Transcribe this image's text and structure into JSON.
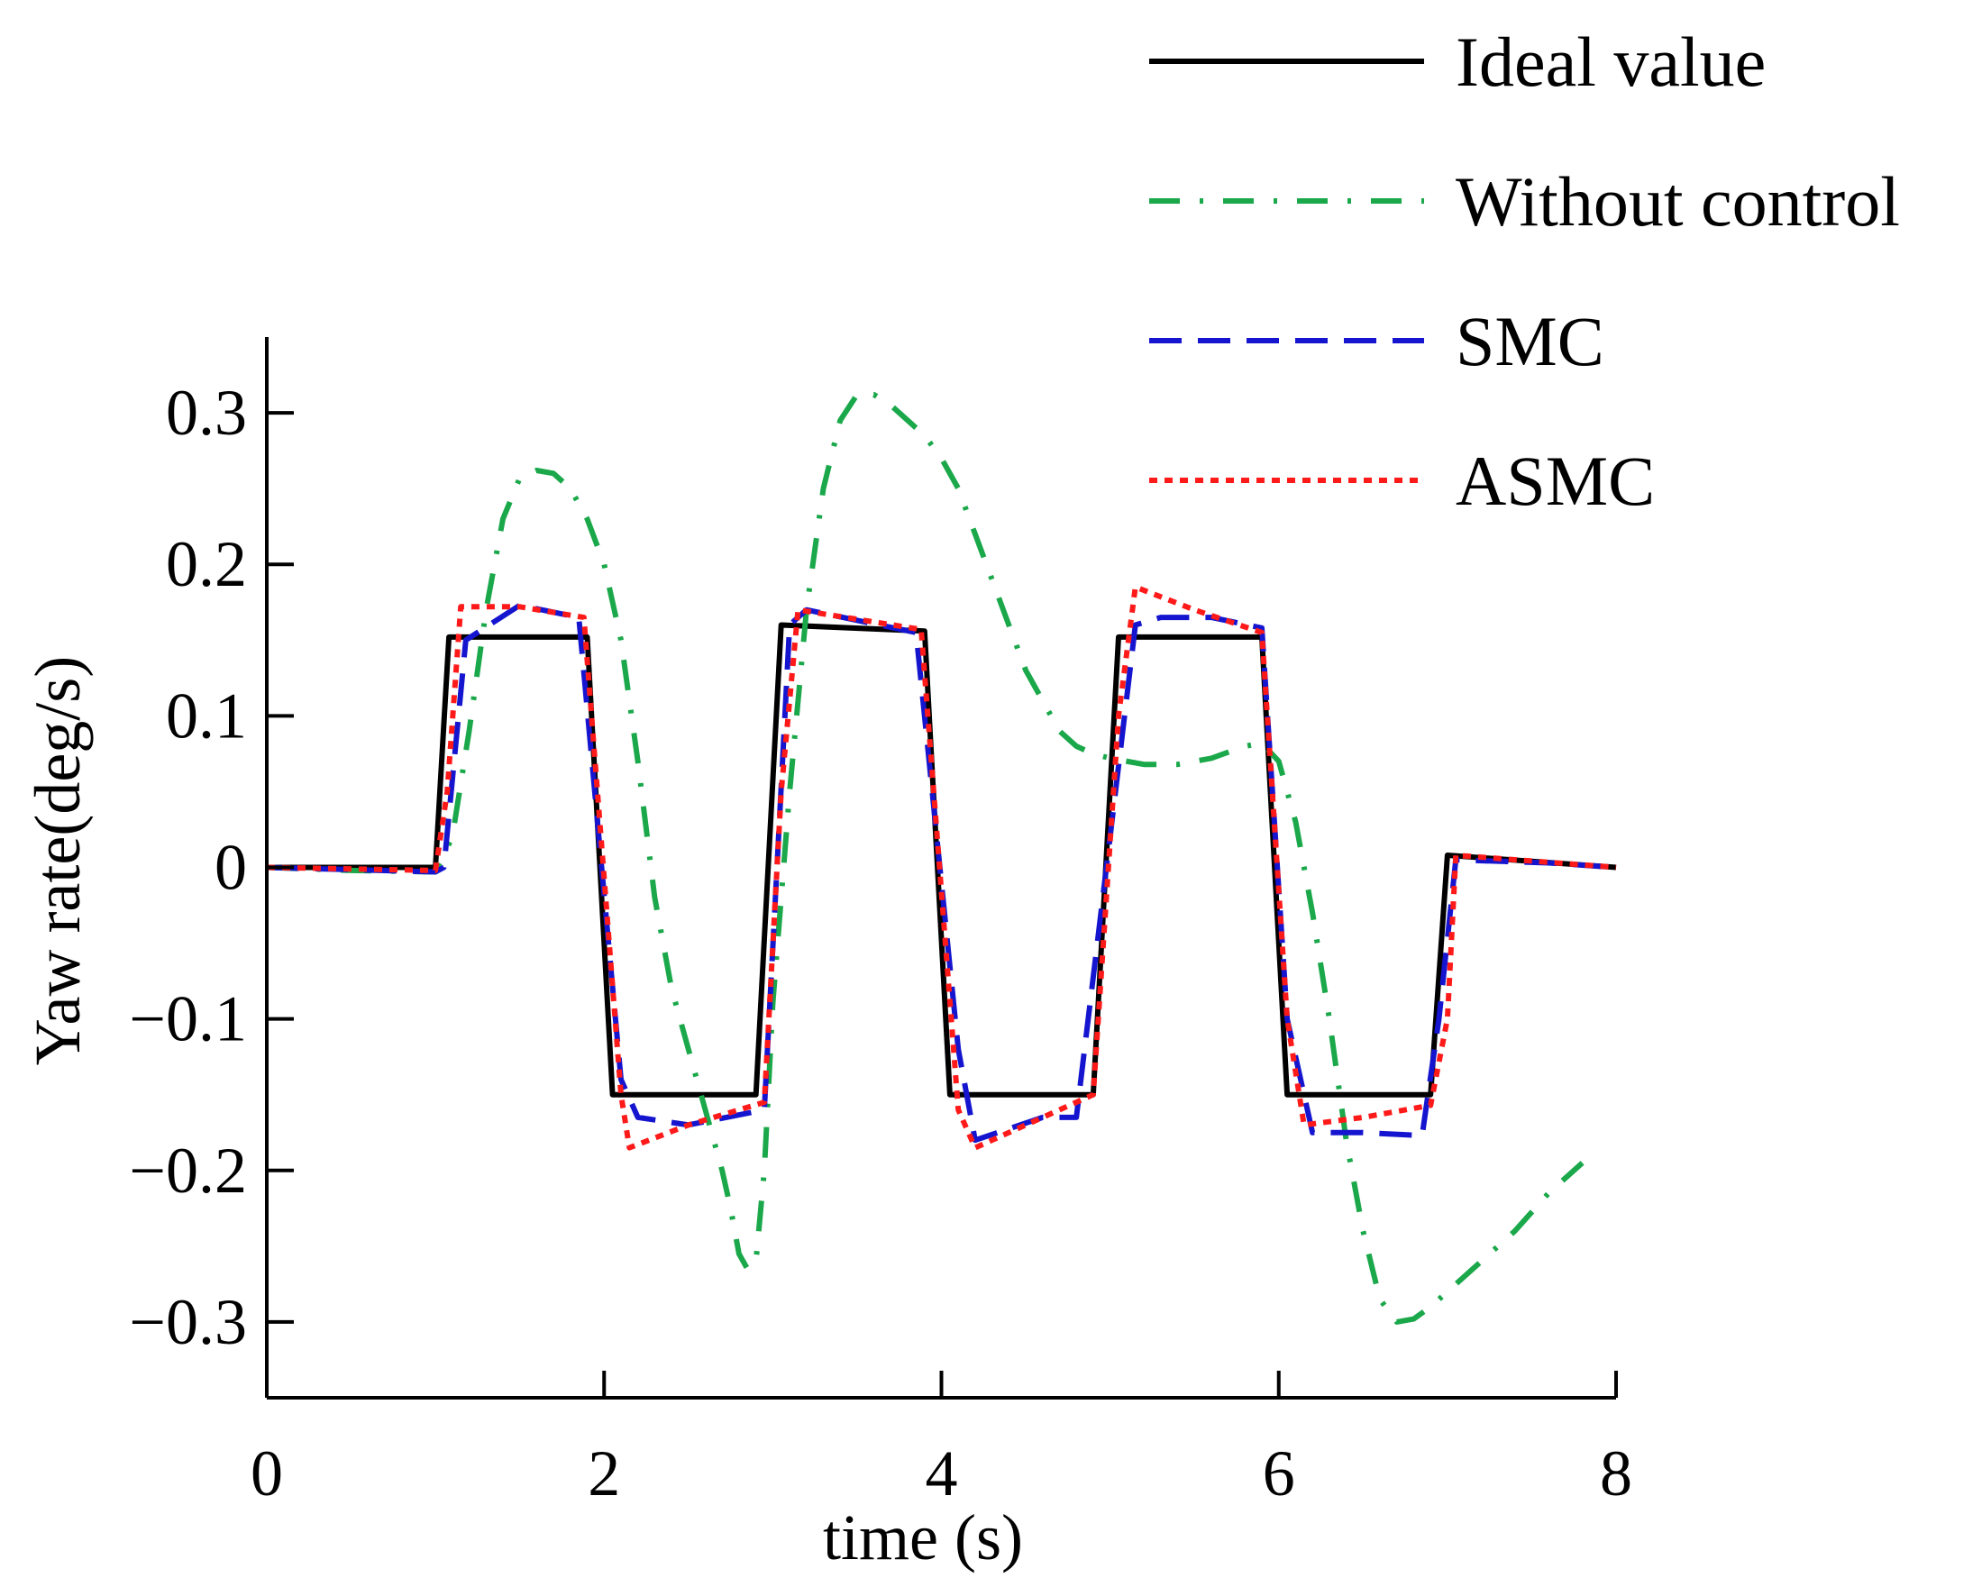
{
  "chart_data": {
    "type": "line",
    "title": "",
    "xlabel": "time (s)",
    "ylabel": "Yaw rate(deg/s)",
    "xlim": [
      0,
      8
    ],
    "ylim": [
      -0.35,
      0.35
    ],
    "xticks": [
      0,
      2,
      4,
      6,
      8
    ],
    "xtick_labels": [
      "0",
      "2",
      "4",
      "6",
      "8"
    ],
    "yticks": [
      -0.3,
      -0.2,
      -0.1,
      0,
      0.1,
      0.2,
      0.3
    ],
    "ytick_labels": [
      "−0.3",
      "−0.2",
      "−0.1",
      "0",
      "0.1",
      "0.2",
      "0.3"
    ],
    "grid": false,
    "legend_position": "top-right",
    "series": [
      {
        "name": "Ideal value",
        "color": "#000000",
        "style": "solid",
        "x": [
          0,
          1.0,
          1.08,
          1.9,
          2.05,
          2.9,
          3.05,
          3.9,
          4.05,
          4.9,
          5.05,
          5.9,
          6.05,
          6.9,
          7.0,
          8.0
        ],
        "y": [
          0,
          0,
          0.152,
          0.152,
          -0.15,
          -0.15,
          0.16,
          0.156,
          -0.15,
          -0.15,
          0.152,
          0.152,
          -0.15,
          -0.15,
          0.008,
          0
        ]
      },
      {
        "name": "Without control",
        "color": "#1aa84a",
        "style": "dashdot",
        "x": [
          0,
          0.5,
          1.0,
          1.1,
          1.2,
          1.3,
          1.4,
          1.5,
          1.6,
          1.7,
          1.8,
          1.9,
          2.0,
          2.1,
          2.2,
          2.3,
          2.4,
          2.5,
          2.6,
          2.7,
          2.75,
          2.8,
          2.85,
          2.9,
          2.95,
          3.0,
          3.1,
          3.2,
          3.3,
          3.4,
          3.5,
          3.6,
          3.7,
          3.8,
          3.9,
          4.0,
          4.1,
          4.2,
          4.3,
          4.4,
          4.5,
          4.6,
          4.7,
          4.8,
          4.9,
          5.0,
          5.2,
          5.4,
          5.6,
          5.8,
          5.9,
          6.0,
          6.1,
          6.2,
          6.3,
          6.4,
          6.5,
          6.6,
          6.7,
          6.8,
          6.9,
          7.0,
          7.2,
          7.4,
          7.6,
          7.8
        ],
        "y": [
          0,
          -0.002,
          -0.003,
          0.02,
          0.09,
          0.17,
          0.23,
          0.257,
          0.262,
          0.26,
          0.25,
          0.23,
          0.2,
          0.15,
          0.07,
          -0.02,
          -0.08,
          -0.12,
          -0.16,
          -0.2,
          -0.225,
          -0.255,
          -0.265,
          -0.26,
          -0.2,
          -0.09,
          0.05,
          0.17,
          0.25,
          0.295,
          0.312,
          0.312,
          0.305,
          0.295,
          0.285,
          0.27,
          0.25,
          0.22,
          0.19,
          0.16,
          0.13,
          0.11,
          0.09,
          0.08,
          0.075,
          0.072,
          0.068,
          0.068,
          0.072,
          0.08,
          0.082,
          0.07,
          0.03,
          -0.03,
          -0.1,
          -0.18,
          -0.24,
          -0.285,
          -0.3,
          -0.298,
          -0.29,
          -0.28,
          -0.26,
          -0.24,
          -0.215,
          -0.195
        ]
      },
      {
        "name": "SMC",
        "color": "#1515d0",
        "style": "dashed",
        "x": [
          0,
          1.0,
          1.05,
          1.18,
          1.5,
          1.85,
          2.1,
          2.2,
          2.5,
          2.95,
          3.1,
          3.2,
          3.85,
          4.1,
          4.2,
          4.6,
          4.8,
          5.0,
          5.15,
          5.3,
          5.6,
          5.9,
          6.05,
          6.2,
          6.5,
          6.85,
          6.95,
          7.05,
          7.6,
          8.0
        ],
        "y": [
          0,
          -0.003,
          0,
          0.15,
          0.173,
          0.165,
          -0.14,
          -0.165,
          -0.17,
          -0.16,
          0.16,
          0.17,
          0.155,
          -0.12,
          -0.18,
          -0.165,
          -0.165,
          0.02,
          0.16,
          0.165,
          0.165,
          0.158,
          -0.1,
          -0.175,
          -0.175,
          -0.177,
          -0.1,
          0.005,
          0.003,
          0
        ]
      },
      {
        "name": "ASMC",
        "color": "#ff1a1a",
        "style": "dotted",
        "x": [
          0,
          1.0,
          1.07,
          1.15,
          1.5,
          1.88,
          2.1,
          2.15,
          2.5,
          2.95,
          3.05,
          3.15,
          3.88,
          4.1,
          4.2,
          4.5,
          4.9,
          5.05,
          5.15,
          5.5,
          5.9,
          6.05,
          6.15,
          6.5,
          6.9,
          7.0,
          7.05,
          8.0
        ],
        "y": [
          0,
          -0.002,
          0.05,
          0.172,
          0.172,
          0.165,
          -0.15,
          -0.185,
          -0.17,
          -0.155,
          0.05,
          0.17,
          0.157,
          -0.16,
          -0.185,
          -0.17,
          -0.15,
          0.1,
          0.185,
          0.17,
          0.155,
          -0.1,
          -0.17,
          -0.165,
          -0.157,
          -0.1,
          0.008,
          0
        ]
      }
    ]
  }
}
